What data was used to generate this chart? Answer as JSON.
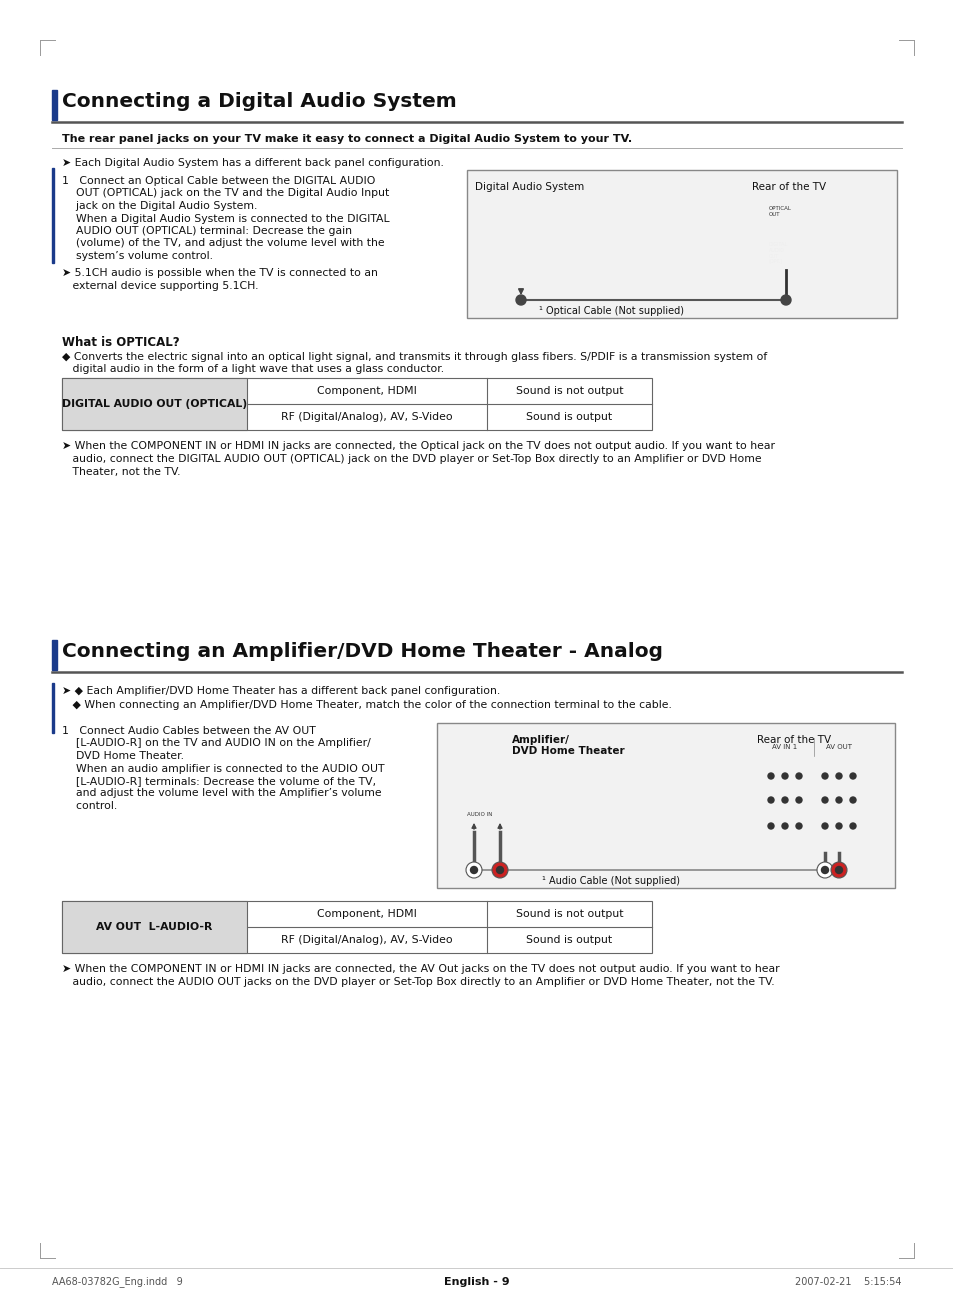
{
  "bg_color": "#ffffff",
  "section1_title": "Connecting a Digital Audio System",
  "section1_bold": "The rear panel jacks on your TV make it easy to connect a Digital Audio System to your TV.",
  "section1_note": "➤ Each Digital Audio System has a different back panel configuration.",
  "section1_step1_line1": "1   Connect an Optical Cable between the DIGITAL AUDIO",
  "section1_step1_line2": "    OUT (OPTICAL) jack on the TV and the Digital Audio Input",
  "section1_step1_line3": "    jack on the Digital Audio System.",
  "section1_step1_line4": "    When a Digital Audio System is connected to the DIGITAL",
  "section1_step1_line5": "    AUDIO OUT (OPTICAL) terminal: Decrease the gain",
  "section1_step1_line6": "    (volume) of the TV, and adjust the volume level with the",
  "section1_step1_line7": "    system’s volume control.",
  "section1_51ch_note": "➤ 5.1CH audio is possible when the TV is connected to an",
  "section1_51ch_note2": "   external device supporting 5.1CH.",
  "diag1_label_das": "Digital Audio System",
  "diag1_label_tv": "Rear of the TV",
  "diag1_cable_label": "¹ Optical Cable (Not supplied)",
  "what_is_optical": "What is OPTICAL?",
  "optical_text1": "◆ Converts the electric signal into an optical light signal, and transmits it through glass fibers. S/PDIF is a transmission system of",
  "optical_text2": "   digital audio in the form of a light wave that uses a glass conductor.",
  "table1_header": "DIGITAL AUDIO OUT (OPTICAL)",
  "table1_r1c1": "RF (Digital/Analog), AV, S-Video",
  "table1_r1c2": "Sound is output",
  "table1_r2c1": "Component, HDMI",
  "table1_r2c2": "Sound is not output",
  "sec1_warn1": "➤ When the COMPONENT IN or HDMI IN jacks are connected, the Optical jack on the TV does not output audio. If you want to hear",
  "sec1_warn2": "   audio, connect the DIGITAL AUDIO OUT (OPTICAL) jack on the DVD player or Set-Top Box directly to an Amplifier or DVD Home",
  "sec1_warn3": "   Theater, not the TV.",
  "section2_title": "Connecting an Amplifier/DVD Home Theater - Analog",
  "sec2_note1": "➤ ◆ Each Amplifier/DVD Home Theater has a different back panel configuration.",
  "sec2_note2": "   ◆ When connecting an Amplifier/DVD Home Theater, match the color of the connection terminal to the cable.",
  "sec2_step1_line1": "1   Connect Audio Cables between the AV OUT",
  "sec2_step1_line2": "    [L-AUDIO-R] on the TV and AUDIO IN on the Amplifier/",
  "sec2_step1_line3": "    DVD Home Theater.",
  "sec2_step1_line4": "    When an audio amplifier is connected to the AUDIO OUT",
  "sec2_step1_line5": "    [L-AUDIO-R] terminals: Decrease the volume of the TV,",
  "sec2_step1_line6": "    and adjust the volume level with the Amplifier’s volume",
  "sec2_step1_line7": "    control.",
  "diag2_label_amp": "Amplifier/",
  "diag2_label_dvd": "DVD Home Theater",
  "diag2_label_tv": "Rear of the TV",
  "diag2_cable_label": "¹ Audio Cable (Not supplied)",
  "table2_header": "AV OUT  L-AUDIO-R",
  "table2_r1c1": "RF (Digital/Analog), AV, S-Video",
  "table2_r1c2": "Sound is output",
  "table2_r2c1": "Component, HDMI",
  "table2_r2c2": "Sound is not output",
  "sec2_warn1": "➤ When the COMPONENT IN or HDMI IN jacks are connected, the AV Out jacks on the TV does not output audio. If you want to hear",
  "sec2_warn2": "   audio, connect the AUDIO OUT jacks on the DVD player or Set-Top Box directly to an Amplifier or DVD Home Theater, not the TV.",
  "footer_center": "English - 9",
  "footer_left": "AA68-03782G_Eng.indd   9",
  "footer_right": "2007-02-21    5:15:54",
  "title_bar_color": "#333333",
  "accent_color": "#1a3a8a",
  "text_color": "#111111",
  "gray_bg": "#e8e8e8",
  "table_header_bg": "#d8d8d8",
  "diag_bg": "#f2f2f2",
  "diag_border": "#888888"
}
